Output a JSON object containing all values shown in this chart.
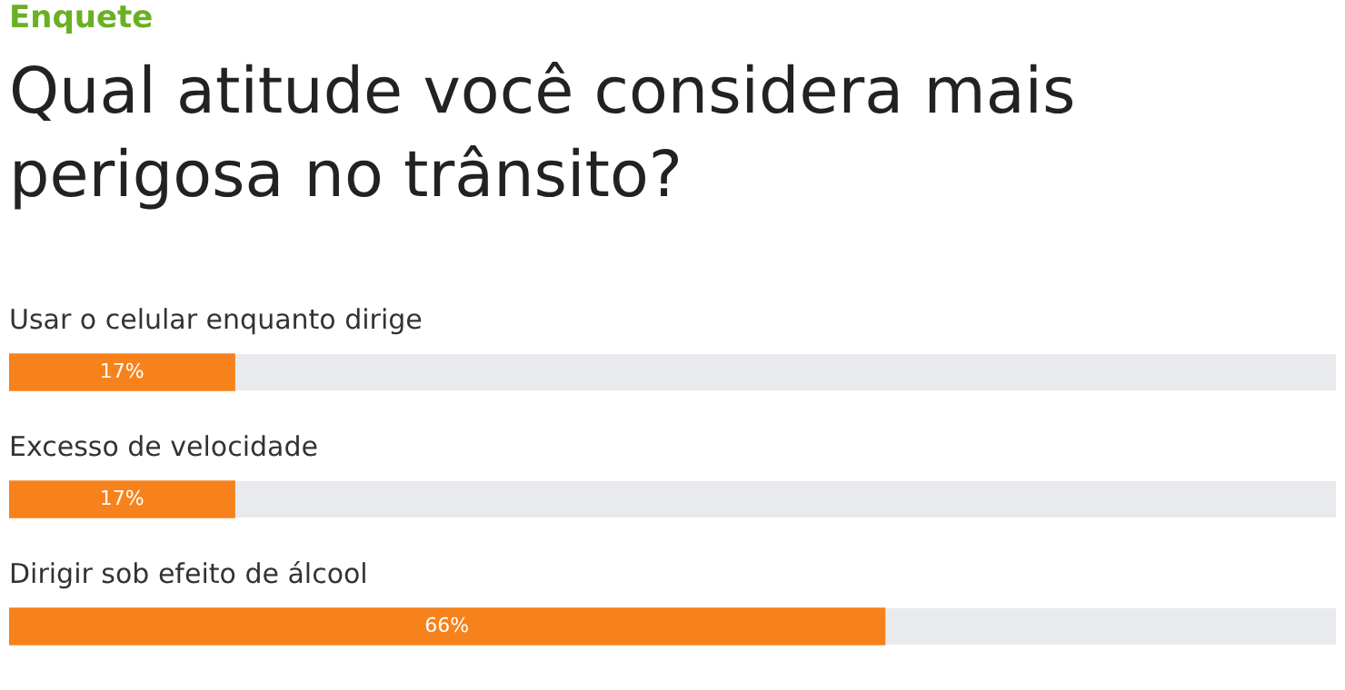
{
  "chart_data": {
    "type": "bar",
    "orientation": "horizontal",
    "subtitle": "Enquete",
    "title": "Qual atitude você considera mais perigosa no trânsito?",
    "categories": [
      "Usar o celular enquanto dirige",
      "Excesso de velocidade",
      "Dirigir sob efeito de álcool"
    ],
    "values": [
      17,
      17,
      66
    ],
    "value_labels": [
      "17%",
      "17%",
      "66%"
    ],
    "color": "#f7821b",
    "xlim": [
      0,
      100
    ],
    "tick_labels": false
  }
}
